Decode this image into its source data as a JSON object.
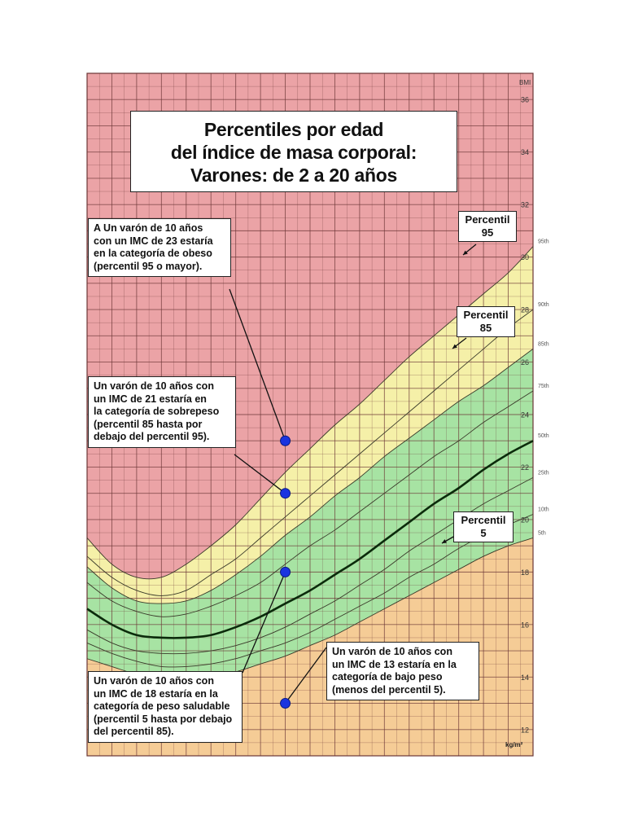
{
  "chart_data": {
    "type": "line",
    "title_lines": [
      "Percentiles por edad",
      "del índice de masa corporal:",
      "Varones: de 2 a 20 años"
    ],
    "ylabel_top": "BMI",
    "ylabel_bottom": "kg/m²",
    "ylim": [
      11,
      37
    ],
    "xlim": [
      2,
      20
    ],
    "y_ticks": [
      12,
      14,
      16,
      18,
      20,
      22,
      24,
      26,
      28,
      30,
      32,
      34,
      36
    ],
    "grid": true,
    "series": [
      {
        "name": "95th",
        "x": [
          2,
          3,
          4,
          5,
          6,
          7,
          8,
          9,
          10,
          11,
          12,
          13,
          14,
          15,
          16,
          17,
          18,
          19,
          20
        ],
        "values": [
          19.3,
          18.3,
          17.8,
          17.8,
          18.3,
          19.0,
          19.8,
          20.8,
          21.8,
          22.7,
          23.6,
          24.4,
          25.3,
          26.2,
          27.0,
          27.8,
          28.6,
          29.4,
          30.4
        ]
      },
      {
        "name": "90th",
        "x": [
          2,
          3,
          4,
          5,
          6,
          7,
          8,
          9,
          10,
          11,
          12,
          13,
          14,
          15,
          16,
          17,
          18,
          19,
          20
        ],
        "values": [
          18.6,
          17.8,
          17.3,
          17.1,
          17.3,
          17.9,
          18.5,
          19.3,
          20.1,
          20.9,
          21.7,
          22.5,
          23.3,
          24.1,
          24.9,
          25.7,
          26.5,
          27.3,
          28.0
        ]
      },
      {
        "name": "85th",
        "x": [
          2,
          3,
          4,
          5,
          6,
          7,
          8,
          9,
          10,
          11,
          12,
          13,
          14,
          15,
          16,
          17,
          18,
          19,
          20
        ],
        "values": [
          18.2,
          17.4,
          16.9,
          16.8,
          16.9,
          17.3,
          17.9,
          18.6,
          19.4,
          20.1,
          20.9,
          21.6,
          22.4,
          23.1,
          23.8,
          24.5,
          25.1,
          25.8,
          26.5
        ]
      },
      {
        "name": "75th",
        "x": [
          2,
          3,
          4,
          5,
          6,
          7,
          8,
          9,
          10,
          11,
          12,
          13,
          14,
          15,
          16,
          17,
          18,
          19,
          20
        ],
        "values": [
          17.6,
          16.9,
          16.5,
          16.3,
          16.4,
          16.7,
          17.1,
          17.6,
          18.3,
          19.0,
          19.6,
          20.3,
          21.0,
          21.7,
          22.4,
          23.0,
          23.7,
          24.3,
          24.9
        ]
      },
      {
        "name": "50th",
        "x": [
          2,
          3,
          4,
          5,
          6,
          7,
          8,
          9,
          10,
          11,
          12,
          13,
          14,
          15,
          16,
          17,
          18,
          19,
          20
        ],
        "values": [
          16.6,
          16.0,
          15.6,
          15.5,
          15.5,
          15.6,
          15.9,
          16.3,
          16.8,
          17.3,
          17.9,
          18.5,
          19.2,
          19.9,
          20.6,
          21.2,
          21.9,
          22.5,
          23.0
        ]
      },
      {
        "name": "25th",
        "x": [
          2,
          3,
          4,
          5,
          6,
          7,
          8,
          9,
          10,
          11,
          12,
          13,
          14,
          15,
          16,
          17,
          18,
          19,
          20
        ],
        "values": [
          15.8,
          15.3,
          15.0,
          14.9,
          14.9,
          15.0,
          15.2,
          15.5,
          15.9,
          16.4,
          16.9,
          17.5,
          18.1,
          18.8,
          19.4,
          20.0,
          20.6,
          21.1,
          21.6
        ]
      },
      {
        "name": "10th",
        "x": [
          2,
          3,
          4,
          5,
          6,
          7,
          8,
          9,
          10,
          11,
          12,
          13,
          14,
          15,
          16,
          17,
          18,
          19,
          20
        ],
        "values": [
          15.3,
          14.9,
          14.6,
          14.4,
          14.4,
          14.5,
          14.7,
          15.0,
          15.3,
          15.7,
          16.2,
          16.7,
          17.2,
          17.8,
          18.3,
          18.9,
          19.4,
          19.8,
          20.2
        ]
      },
      {
        "name": "5th",
        "x": [
          2,
          3,
          4,
          5,
          6,
          7,
          8,
          9,
          10,
          11,
          12,
          13,
          14,
          15,
          16,
          17,
          18,
          19,
          20
        ],
        "values": [
          14.7,
          14.4,
          14.1,
          13.9,
          13.9,
          14.0,
          14.2,
          14.5,
          14.8,
          15.2,
          15.6,
          16.1,
          16.6,
          17.1,
          17.6,
          18.1,
          18.6,
          19.0,
          19.3
        ]
      }
    ],
    "points": [
      {
        "x": 10,
        "y": 23
      },
      {
        "x": 10,
        "y": 21
      },
      {
        "x": 10,
        "y": 18
      },
      {
        "x": 10,
        "y": 13
      }
    ],
    "colors": {
      "obese": "#eba3a6",
      "overweight": "#f5f0a8",
      "healthy": "#a7e3a3",
      "underweight": "#f5cc96",
      "grid": "#6b3636",
      "point": "#1a34e0"
    }
  },
  "percentile_labels": [
    {
      "line1": "Percentil",
      "line2": "95"
    },
    {
      "line1": "Percentil",
      "line2": "85"
    },
    {
      "line1": "Percentil",
      "line2": "5"
    }
  ],
  "callouts": [
    "A Un varón de 10 años\ncon un IMC de 23 estaría\nen la categoría de obeso\n(percentil 95 o mayor).",
    "Un varón de 10 años con\nun IMC de 21 estaría en\nla categoría de sobrepeso\n(percentil 85 hasta por\ndebajo del percentil 95).",
    "Un varón de 10 años con\nun IMC de 18 estaría en la\ncategoría de peso saludable\n(percentil 5 hasta por debajo\ndel percentil 85).",
    "Un varón de 10 años con\nun IMC de 13 estaría en la\ncategoría de bajo peso\n(menos del percentil 5)."
  ]
}
